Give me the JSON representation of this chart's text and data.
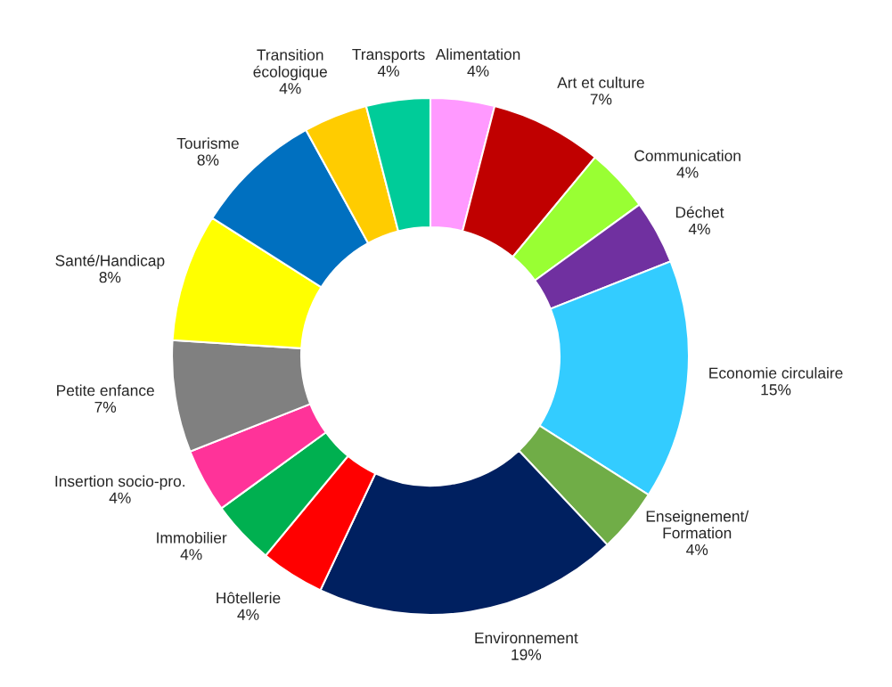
{
  "chart_data": {
    "type": "donut",
    "categories": [
      "Alimentation",
      "Art et culture",
      "Communication",
      "Déchet",
      "Economie circulaire",
      "Enseignement/\nFormation",
      "Environnement",
      "Hôtellerie",
      "Immobilier",
      "Insertion socio-pro.",
      "Petite enfance",
      "Santé/Handicap",
      "Tourisme",
      "Transition\nécologique",
      "Transports"
    ],
    "values": [
      4,
      7,
      4,
      4,
      15,
      4,
      19,
      4,
      4,
      4,
      7,
      8,
      8,
      4,
      4
    ],
    "value_labels": [
      "4%",
      "7%",
      "4%",
      "4%",
      "15%",
      "4%",
      "19%",
      "4%",
      "4%",
      "4%",
      "7%",
      "8%",
      "8%",
      "4%",
      "4%"
    ],
    "colors": [
      "#ff99ff",
      "#c00000",
      "#99ff33",
      "#7030a0",
      "#33ccff",
      "#70ad47",
      "#002060",
      "#ff0000",
      "#00b050",
      "#ff3399",
      "#808080",
      "#ffff00",
      "#0070c0",
      "#ffcc00",
      "#00cc99"
    ]
  }
}
